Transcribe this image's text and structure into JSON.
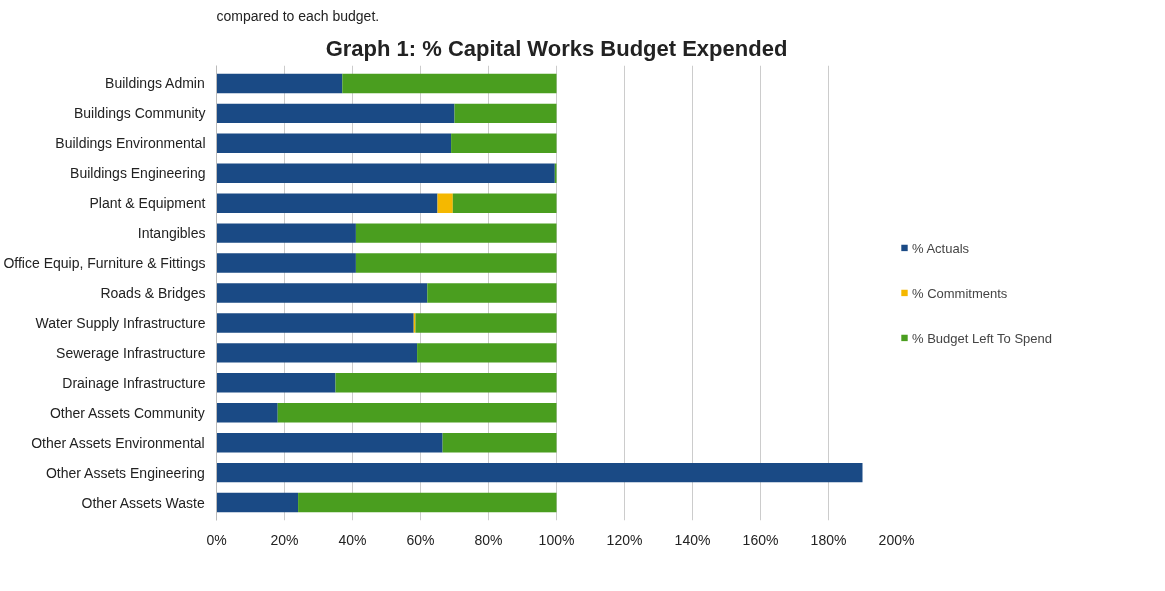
{
  "chart_data": {
    "type": "bar",
    "orientation": "horizontal",
    "stacked": true,
    "title": "Graph 1: % Capital Works Budget Expended",
    "annotations": [
      "compared to each budget."
    ],
    "categories": [
      "Buildings Admin",
      "Buildings Community",
      "Buildings Environmental",
      "Buildings Engineering",
      "Plant & Equipment",
      "Intangibles",
      "Office Equip, Furniture & Fittings",
      "Roads & Bridges",
      "Water Supply Infrastructure",
      "Sewerage Infrastructure",
      "Drainage Infrastructure",
      "Other Assets Community",
      "Other Assets Environmental",
      "Other Assets Engineering",
      "Other Assets Waste"
    ],
    "series": [
      {
        "name": "% Actuals",
        "color": "#1a4a85",
        "values": [
          37,
          70,
          69,
          99.5,
          65,
          41,
          41,
          62,
          58,
          59,
          35,
          18,
          66.5,
          190,
          24
        ]
      },
      {
        "name": "% Commitments",
        "color": "#f5b800",
        "values": [
          0,
          0,
          0,
          0,
          4.5,
          0,
          0,
          0,
          0.5,
          0,
          0,
          0,
          0,
          0,
          0
        ]
      },
      {
        "name": "% Budget Left To Spend",
        "color": "#4a9e1f",
        "values": [
          63,
          30,
          31,
          0.5,
          30.5,
          59,
          59,
          38,
          41.5,
          41,
          65,
          82,
          33.5,
          0,
          76
        ]
      }
    ],
    "xlim": [
      0,
      200
    ],
    "xticks": [
      {
        "value": 0,
        "label": "0%"
      },
      {
        "value": 20,
        "label": "20%"
      },
      {
        "value": 40,
        "label": "40%"
      },
      {
        "value": 60,
        "label": "60%"
      },
      {
        "value": 80,
        "label": "80%"
      },
      {
        "value": 100,
        "label": "100%"
      },
      {
        "value": 120,
        "label": "120%"
      },
      {
        "value": 140,
        "label": "140%"
      },
      {
        "value": 160,
        "label": "160%"
      },
      {
        "value": 180,
        "label": "180%"
      },
      {
        "value": 200,
        "label": "200%"
      }
    ],
    "grid": "x",
    "legend": "right"
  }
}
